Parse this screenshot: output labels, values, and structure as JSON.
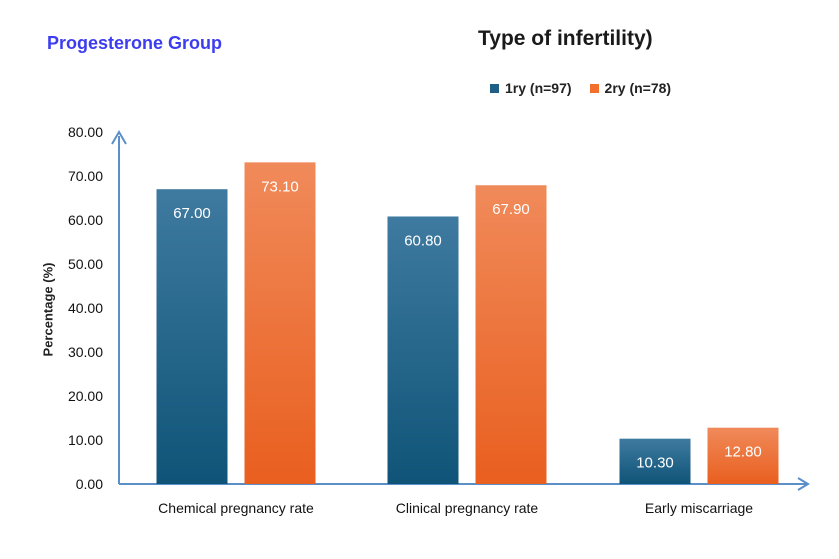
{
  "header": {
    "group_title": "Progesterone Group",
    "legend_title": "Type of infertility)"
  },
  "chart_data": {
    "type": "bar",
    "title": "Type of infertility)",
    "categories": [
      "Chemical pregnancy rate",
      "Clinical pregnancy rate",
      "Early miscarriage"
    ],
    "series": [
      {
        "name": "1ry (n=97)",
        "values": [
          67.0,
          60.8,
          10.3
        ],
        "labels": [
          "67.00",
          "60.80",
          "10.30"
        ],
        "color": "#1f5f85"
      },
      {
        "name": "2ry (n=78)",
        "values": [
          73.1,
          67.9,
          12.8
        ],
        "labels": [
          "73.10",
          "67.90",
          "12.80"
        ],
        "color": "#f26f2c"
      }
    ],
    "xlabel": "",
    "ylabel": "Percentage (%)",
    "ylim": [
      0,
      80
    ],
    "yticks": [
      "0.00",
      "10.00",
      "20.00",
      "30.00",
      "40.00",
      "50.00",
      "60.00",
      "70.00",
      "80.00"
    ],
    "grid": false,
    "legend_position": "top"
  }
}
